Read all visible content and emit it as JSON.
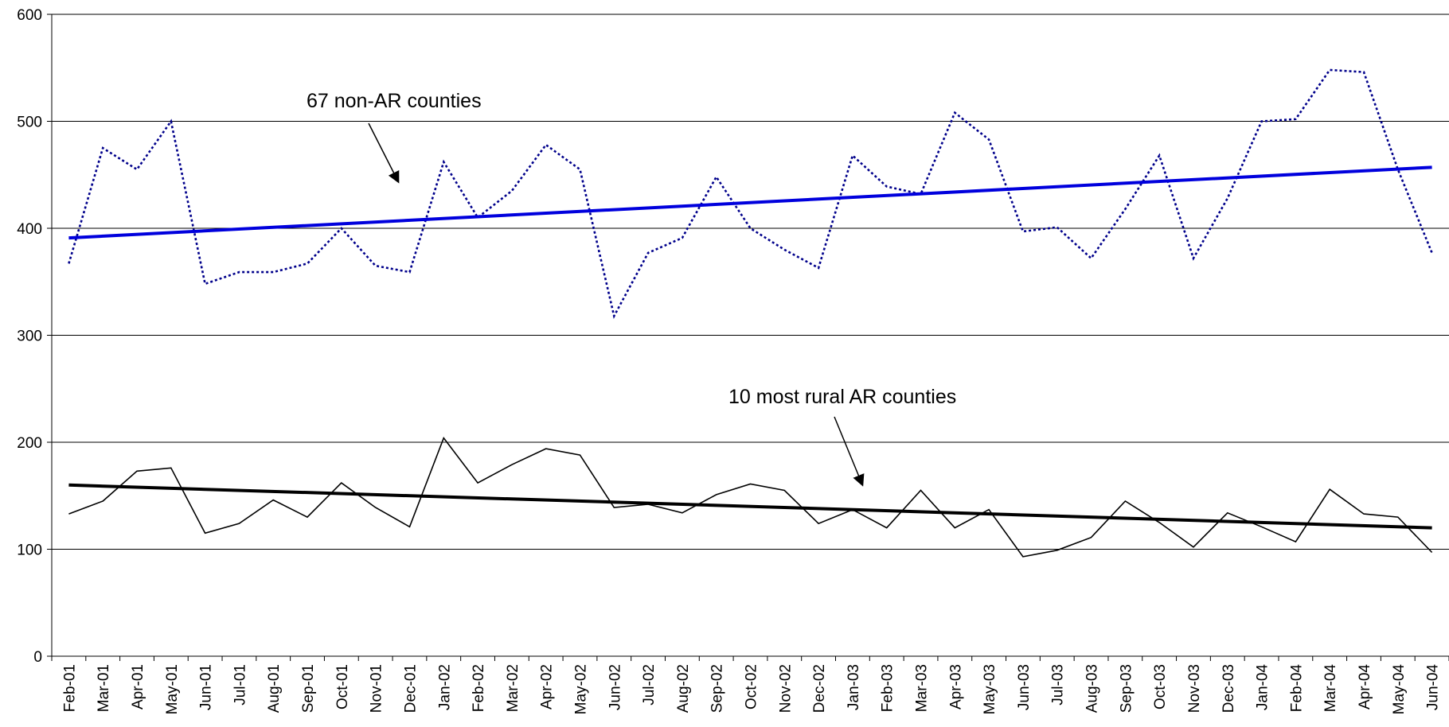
{
  "chart_data": {
    "type": "line",
    "title": "",
    "xlabel": "",
    "ylabel": "",
    "ylim": [
      0,
      600
    ],
    "yticks": [
      0,
      100,
      200,
      300,
      400,
      500,
      600
    ],
    "grid": "horizontal",
    "legend": "none",
    "categories": [
      "Feb-01",
      "Mar-01",
      "Apr-01",
      "May-01",
      "Jun-01",
      "Jul-01",
      "Aug-01",
      "Sep-01",
      "Oct-01",
      "Nov-01",
      "Dec-01",
      "Jan-02",
      "Feb-02",
      "Mar-02",
      "Apr-02",
      "May-02",
      "Jun-02",
      "Jul-02",
      "Aug-02",
      "Sep-02",
      "Oct-02",
      "Nov-02",
      "Dec-02",
      "Jan-03",
      "Feb-03",
      "Mar-03",
      "Apr-03",
      "May-03",
      "Jun-03",
      "Jul-03",
      "Aug-03",
      "Sep-03",
      "Oct-03",
      "Nov-03",
      "Dec-03",
      "Jan-04",
      "Feb-04",
      "Mar-04",
      "Apr-04",
      "May-04",
      "Jun-04"
    ],
    "series": [
      {
        "style": "dotted",
        "color": "#00008B",
        "values": [
          367,
          475,
          455,
          500,
          348,
          359,
          359,
          367,
          400,
          365,
          359,
          462,
          410,
          435,
          478,
          455,
          318,
          377,
          391,
          448,
          400,
          380,
          363,
          468,
          439,
          432,
          508,
          483,
          397,
          401,
          372,
          418,
          468,
          372,
          428,
          500,
          502,
          548,
          546,
          455,
          377
        ]
      },
      {
        "style": "solid",
        "color": "#000000",
        "values": [
          133,
          145,
          173,
          176,
          115,
          124,
          146,
          130,
          162,
          139,
          121,
          204,
          162,
          179,
          194,
          188,
          139,
          142,
          134,
          151,
          161,
          155,
          124,
          137,
          120,
          155,
          120,
          137,
          93,
          99,
          111,
          145,
          125,
          102,
          134,
          121,
          107,
          156,
          133,
          130,
          97
        ]
      }
    ],
    "trendlines": [
      {
        "color": "#0000DD",
        "start": 391,
        "end": 457
      },
      {
        "color": "#000000",
        "start": 160,
        "end": 120
      }
    ],
    "annotations": [
      {
        "text": "67 non-AR counties"
      },
      {
        "text": "10 most rural AR counties"
      }
    ]
  }
}
